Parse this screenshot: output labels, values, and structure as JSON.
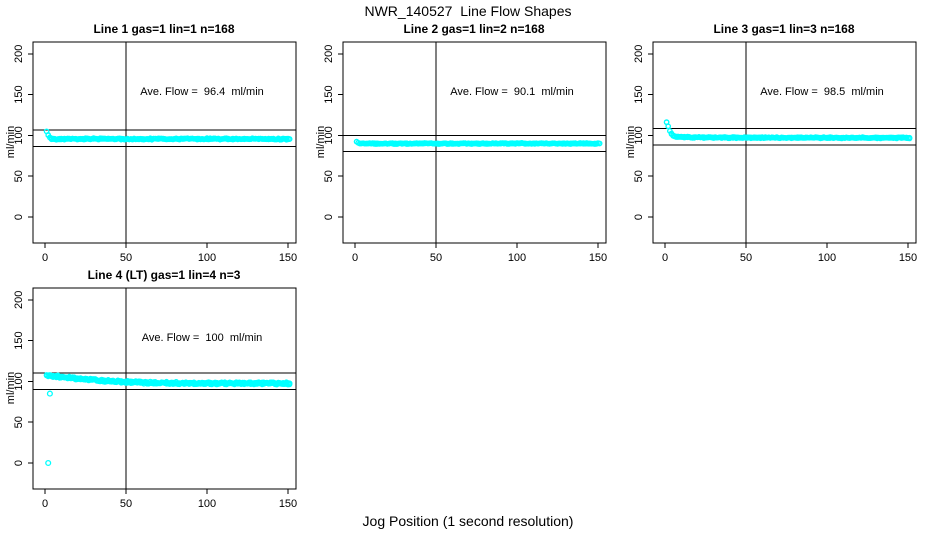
{
  "page": {
    "title": "NWR_140527  Line Flow Shapes",
    "xlabel": "Jog Position (1 second resolution)",
    "background": "#ffffff",
    "point_color": "#00ffff",
    "line_color": "#000000"
  },
  "chart_data": [
    {
      "type": "scatter",
      "id": "line1",
      "title": "Line 1 gas=1 lin=1 n=168",
      "n": 168,
      "annotation": "Ave. Flow =  96.4  ml/min",
      "ave_flow": 96.4,
      "ylabel": "ml/min",
      "x_ticks": [
        0,
        50,
        100,
        150
      ],
      "y_ticks": [
        0,
        50,
        100,
        150,
        200
      ],
      "xlim": [
        -7,
        155
      ],
      "ylim": [
        -30,
        215
      ],
      "ref_line_upper": 106.4,
      "ref_line_lower": 86.4,
      "ref_line_vertical_x": 50,
      "point_color": "#00ffff",
      "profile": [
        [
          1,
          104.5
        ],
        [
          2,
          100.5
        ],
        [
          3,
          97.5
        ],
        [
          4,
          96.2
        ],
        [
          6,
          95.6
        ],
        [
          10,
          95.5
        ],
        [
          30,
          95.8
        ],
        [
          60,
          95.5
        ],
        [
          90,
          95.8
        ],
        [
          120,
          95.6
        ],
        [
          151,
          95.5
        ]
      ],
      "spread": 1.3,
      "passes": 2,
      "x_start": 1,
      "x_end": 151,
      "outliers": []
    },
    {
      "type": "scatter",
      "id": "line2",
      "title": "Line 2 gas=1 lin=2 n=168",
      "n": 168,
      "annotation": "Ave. Flow =  90.1  ml/min",
      "ave_flow": 90.1,
      "ylabel": "ml/min",
      "x_ticks": [
        0,
        50,
        100,
        150
      ],
      "y_ticks": [
        0,
        50,
        100,
        150,
        200
      ],
      "xlim": [
        -7,
        155
      ],
      "ylim": [
        -30,
        215
      ],
      "ref_line_upper": 100.1,
      "ref_line_lower": 80.1,
      "ref_line_vertical_x": 50,
      "point_color": "#00ffff",
      "profile": [
        [
          1,
          92.5
        ],
        [
          2,
          91.2
        ],
        [
          3,
          90.5
        ],
        [
          5,
          90.2
        ],
        [
          10,
          90.1
        ],
        [
          60,
          90.0
        ],
        [
          100,
          90.2
        ],
        [
          151,
          90.0
        ]
      ],
      "spread": 1.0,
      "passes": 2,
      "x_start": 1,
      "x_end": 151,
      "outliers": []
    },
    {
      "type": "scatter",
      "id": "line3",
      "title": "Line 3 gas=1 lin=3 n=168",
      "n": 168,
      "annotation": "Ave. Flow =  98.5  ml/min",
      "ave_flow": 98.5,
      "ylabel": "ml/min",
      "x_ticks": [
        0,
        50,
        100,
        150
      ],
      "y_ticks": [
        0,
        50,
        100,
        150,
        200
      ],
      "xlim": [
        -7,
        155
      ],
      "ylim": [
        -30,
        215
      ],
      "ref_line_upper": 108.5,
      "ref_line_lower": 88.5,
      "ref_line_vertical_x": 50,
      "point_color": "#00ffff",
      "profile": [
        [
          1,
          116
        ],
        [
          2,
          111
        ],
        [
          3,
          105.5
        ],
        [
          4,
          102
        ],
        [
          5,
          100.2
        ],
        [
          6,
          99.2
        ],
        [
          8,
          98.3
        ],
        [
          12,
          97.8
        ],
        [
          40,
          97.3
        ],
        [
          80,
          97.2
        ],
        [
          151,
          97.0
        ]
      ],
      "spread": 1.2,
      "passes": 2,
      "x_start": 1,
      "x_end": 151,
      "outliers": []
    },
    {
      "type": "scatter",
      "id": "line4",
      "title": "Line 4 (LT) gas=1 lin=4 n=3",
      "n": 3,
      "annotation": "Ave. Flow =  100  ml/min",
      "ave_flow": 100,
      "ylabel": "ml/min",
      "x_ticks": [
        0,
        50,
        100,
        150
      ],
      "y_ticks": [
        0,
        50,
        100,
        150,
        200
      ],
      "xlim": [
        -7,
        155
      ],
      "ylim": [
        -30,
        215
      ],
      "ref_line_upper": 110,
      "ref_line_lower": 90,
      "ref_line_vertical_x": 50,
      "point_color": "#00ffff",
      "profile": [
        [
          1,
          107.5
        ],
        [
          4,
          106.8
        ],
        [
          8,
          106
        ],
        [
          12,
          105
        ],
        [
          16,
          104.2
        ],
        [
          20,
          103.4
        ],
        [
          25,
          102.5
        ],
        [
          30,
          101.8
        ],
        [
          35,
          101
        ],
        [
          40,
          100.4
        ],
        [
          45,
          99.9
        ],
        [
          50,
          99.4
        ],
        [
          55,
          99
        ],
        [
          60,
          98.6
        ],
        [
          70,
          98.2
        ],
        [
          80,
          98
        ],
        [
          90,
          97.8
        ],
        [
          100,
          97.7
        ],
        [
          120,
          97.6
        ],
        [
          151,
          97.5
        ]
      ],
      "spread": 2.0,
      "passes": 3,
      "x_start": 1,
      "x_end": 151,
      "outliers": [
        [
          3,
          85
        ],
        [
          2,
          0
        ]
      ]
    }
  ]
}
